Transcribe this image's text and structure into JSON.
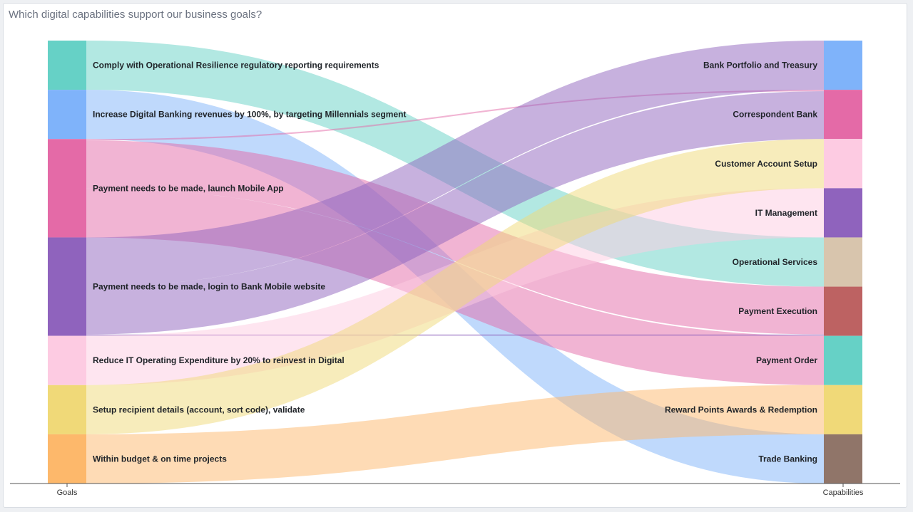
{
  "title": "Which digital capabilities support our business goals?",
  "chart_data": {
    "type": "sankey",
    "axis_labels": {
      "left": "Goals",
      "right": "Capabilities"
    },
    "goals": [
      {
        "id": "g1",
        "label": "Comply with Operational Resilience regulatory reporting requirements",
        "color": "#66d1c6"
      },
      {
        "id": "g2",
        "label": "Increase Digital Banking revenues by 100%, by targeting Millennials segment",
        "color": "#7fb3fa"
      },
      {
        "id": "g3",
        "label": "Payment needs to be made, launch Mobile App",
        "color": "#e46aa7"
      },
      {
        "id": "g4",
        "label": "Payment needs to be made, login to Bank Mobile website",
        "color": "#8f63bd"
      },
      {
        "id": "g5",
        "label": "Reduce IT Operating Expenditure by 20% to reinvest in Digital",
        "color": "#fdcbe2"
      },
      {
        "id": "g6",
        "label": "Setup recipient details (account, sort code), validate",
        "color": "#f0d978"
      },
      {
        "id": "g7",
        "label": "Within budget & on time projects",
        "color": "#fdb86b"
      }
    ],
    "capabilities": [
      {
        "id": "c1",
        "label": "Bank Portfolio and Treasury",
        "color": "#7fb3fa"
      },
      {
        "id": "c2",
        "label": "Correspondent Bank",
        "color": "#e46aa7"
      },
      {
        "id": "c3",
        "label": "Customer Account Setup",
        "color": "#fdcbe2"
      },
      {
        "id": "c4",
        "label": "IT Management",
        "color": "#8f63bd"
      },
      {
        "id": "c5",
        "label": "Operational Services",
        "color": "#d8c5ad"
      },
      {
        "id": "c6",
        "label": "Payment Execution",
        "color": "#bd6262"
      },
      {
        "id": "c7",
        "label": "Payment Order",
        "color": "#66d1c6"
      },
      {
        "id": "c8",
        "label": "Reward Points Awards & Redemption",
        "color": "#f0d978"
      },
      {
        "id": "c9",
        "label": "Trade Banking",
        "color": "#907569"
      }
    ],
    "links": [
      {
        "source": "g1",
        "target": "c5",
        "value": 1
      },
      {
        "source": "g2",
        "target": "c9",
        "value": 1
      },
      {
        "source": "g3",
        "target": "c2",
        "value": 0.03
      },
      {
        "source": "g3",
        "target": "c6",
        "value": 0.97
      },
      {
        "source": "g3",
        "target": "c7",
        "value": 1
      },
      {
        "source": "g4",
        "target": "c1",
        "value": 1
      },
      {
        "source": "g4",
        "target": "c2",
        "value": 0.97
      },
      {
        "source": "g4",
        "target": "c6",
        "value": 0.03
      },
      {
        "source": "g5",
        "target": "c4",
        "value": 1
      },
      {
        "source": "g6",
        "target": "c3",
        "value": 1
      },
      {
        "source": "g7",
        "target": "c8",
        "value": 1
      }
    ]
  }
}
